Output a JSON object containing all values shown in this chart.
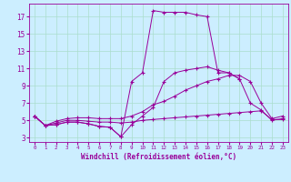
{
  "x": [
    0,
    1,
    2,
    3,
    4,
    5,
    6,
    7,
    8,
    9,
    10,
    11,
    12,
    13,
    14,
    15,
    16,
    17,
    18,
    19,
    20,
    21,
    22,
    23
  ],
  "line1_y": [
    5.5,
    4.4,
    4.5,
    4.8,
    4.8,
    4.6,
    4.3,
    4.2,
    3.1,
    9.5,
    10.5,
    17.7,
    17.5,
    17.5,
    17.5,
    17.2,
    17.0,
    10.5,
    10.5,
    9.8,
    null,
    null,
    null,
    null
  ],
  "line2_y": [
    5.5,
    4.4,
    4.5,
    4.8,
    4.8,
    4.6,
    4.3,
    4.2,
    3.1,
    4.5,
    5.5,
    6.5,
    9.5,
    10.5,
    10.8,
    11.0,
    11.2,
    10.8,
    10.5,
    9.8,
    7.0,
    6.2,
    5.0,
    5.2
  ],
  "line3_y": [
    5.5,
    4.4,
    4.7,
    5.0,
    5.0,
    4.9,
    4.8,
    4.8,
    4.7,
    4.8,
    5.0,
    5.1,
    5.2,
    5.3,
    5.4,
    5.5,
    5.6,
    5.7,
    5.8,
    5.9,
    6.0,
    6.1,
    5.1,
    5.1
  ],
  "line4_y": [
    5.5,
    4.4,
    4.9,
    5.2,
    5.3,
    5.3,
    5.2,
    5.2,
    5.2,
    5.5,
    6.0,
    6.8,
    7.2,
    7.8,
    8.5,
    9.0,
    9.5,
    9.8,
    10.2,
    10.2,
    9.5,
    7.0,
    5.2,
    5.5
  ],
  "color": "#990099",
  "bg_color": "#cceeff",
  "grid_color": "#aaddcc",
  "xlabel": "Windchill (Refroidissement éolien,°C)",
  "ylabel_ticks": [
    3,
    5,
    7,
    9,
    11,
    13,
    15,
    17
  ],
  "xlim": [
    -0.5,
    23.5
  ],
  "ylim": [
    2.5,
    18.5
  ],
  "xticks": [
    0,
    1,
    2,
    3,
    4,
    5,
    6,
    7,
    8,
    9,
    10,
    11,
    12,
    13,
    14,
    15,
    16,
    17,
    18,
    19,
    20,
    21,
    22,
    23
  ]
}
